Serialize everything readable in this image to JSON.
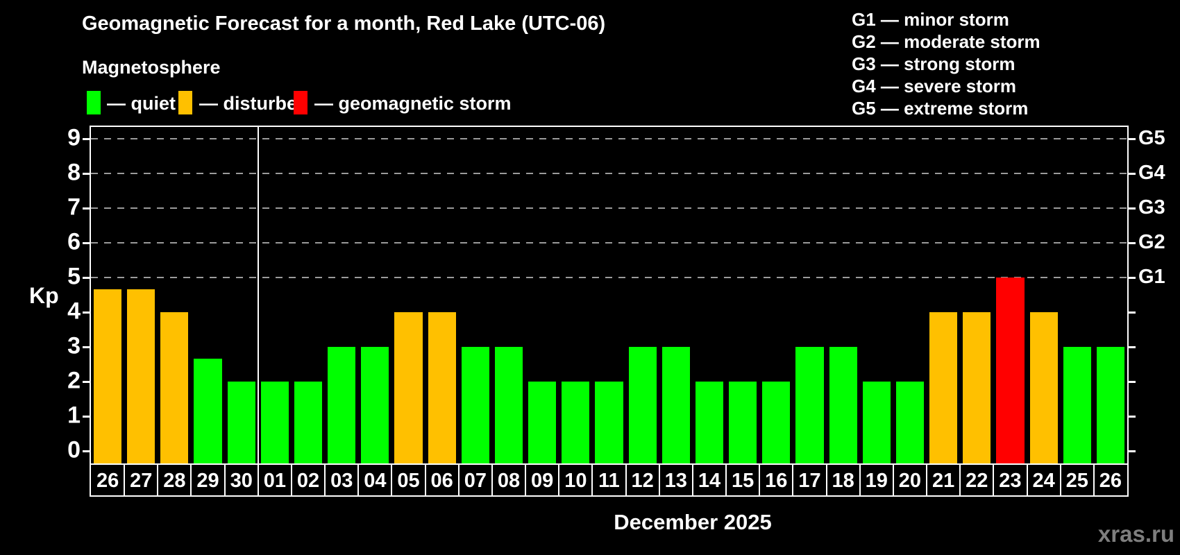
{
  "title": "Geomagnetic Forecast for a month, Red Lake (UTC-06)",
  "subtitle": "Magnetosphere",
  "legend": {
    "quiet_label": "— quiet",
    "disturbed_label": "— disturbed",
    "storm_label": "— geomagnetic storm"
  },
  "g_legend": [
    "G1 — minor storm",
    "G2 — moderate storm",
    "G3 — strong storm",
    "G4 — severe storm",
    "G5 — extreme storm"
  ],
  "axis": {
    "ylabel": "Kp",
    "y_ticks": [
      0,
      1,
      2,
      3,
      4,
      5,
      6,
      7,
      8,
      9
    ],
    "right_scale": [
      {
        "kp": 5,
        "label": "G1"
      },
      {
        "kp": 6,
        "label": "G2"
      },
      {
        "kp": 7,
        "label": "G3"
      },
      {
        "kp": 8,
        "label": "G4"
      },
      {
        "kp": 9,
        "label": "G5"
      }
    ]
  },
  "xlabel": "December 2025",
  "watermark": "xras.ru",
  "colors": {
    "quiet": "#00ff00",
    "disturbed": "#ffc000",
    "storm": "#ff0000",
    "gridline": "#9b9b9b",
    "axis": "#ffffff",
    "watermark": "#7e7e7e"
  },
  "chart_data": {
    "type": "bar",
    "title": "Geomagnetic Forecast for a month, Red Lake (UTC-06)",
    "ylabel": "Kp",
    "xlabel": "December 2025",
    "ylim": [
      -0.36,
      9.36
    ],
    "gridlines_at": [
      5,
      6,
      7,
      8,
      9
    ],
    "grid": "dashed-horizontal",
    "legend_position": "top-left",
    "categories": [
      "26",
      "27",
      "28",
      "29",
      "30",
      "01",
      "02",
      "03",
      "04",
      "05",
      "06",
      "07",
      "08",
      "09",
      "10",
      "11",
      "12",
      "13",
      "14",
      "15",
      "16",
      "17",
      "18",
      "19",
      "20",
      "21",
      "22",
      "23",
      "24",
      "25",
      "26"
    ],
    "values": [
      4.67,
      4.67,
      4,
      2.67,
      2,
      2,
      2,
      3,
      3,
      4,
      4,
      3,
      3,
      2,
      2,
      2,
      3,
      3,
      2,
      2,
      2,
      3,
      3,
      2,
      2,
      4,
      4,
      5,
      4,
      3,
      3
    ],
    "color_rules": {
      "quiet_below_kp": 4,
      "disturbed_kp_4_to_5": true,
      "storm_at_or_above_kp": 5
    },
    "month_separator_after_index": 4
  }
}
